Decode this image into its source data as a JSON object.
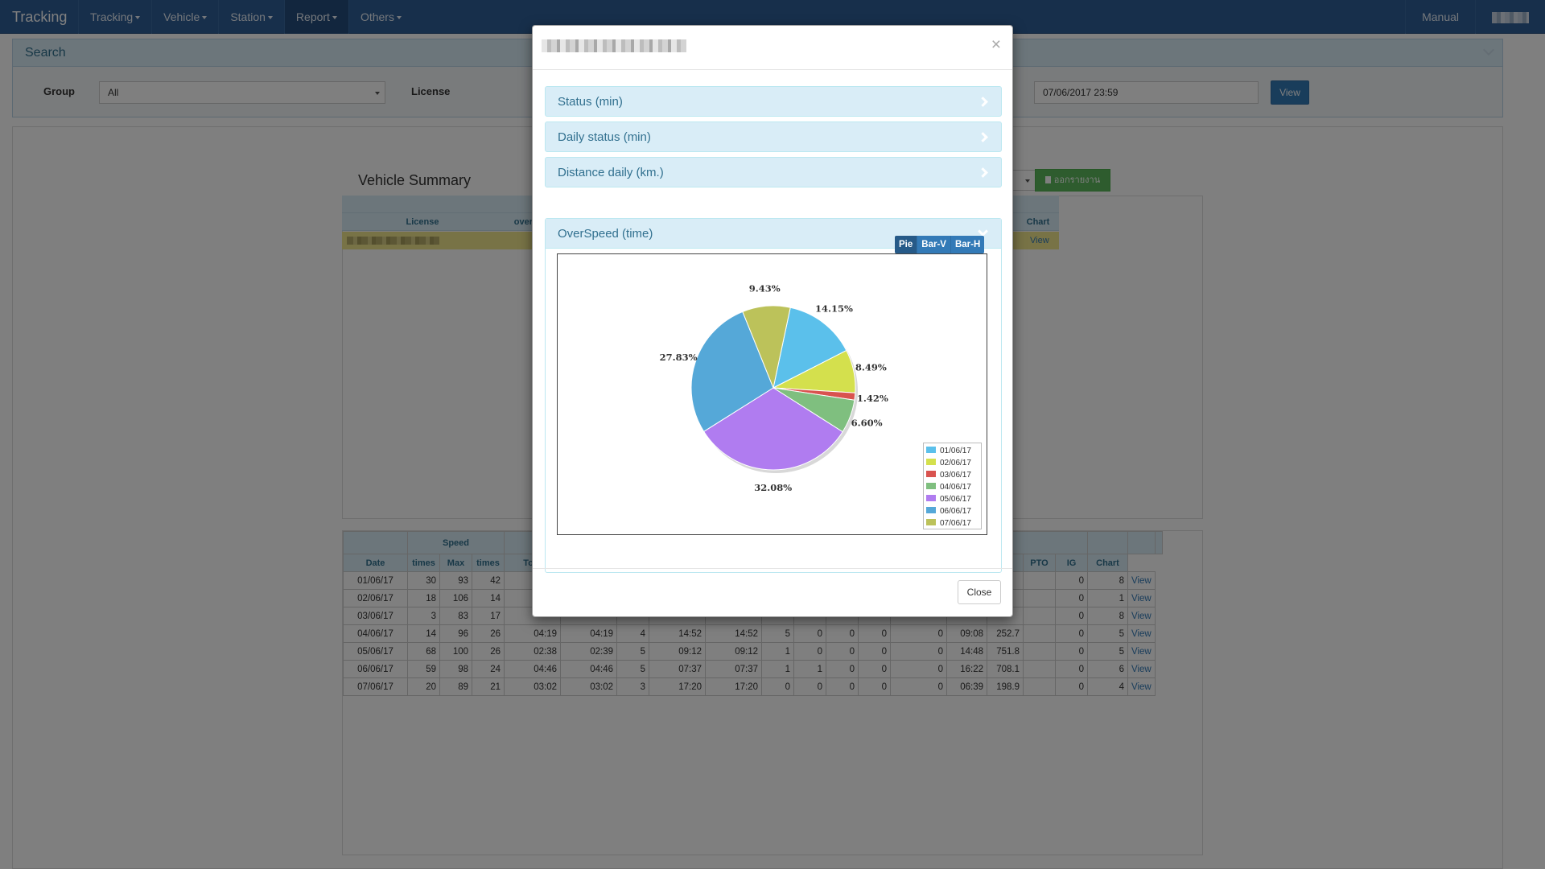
{
  "navbar": {
    "brand": "Tracking",
    "items": [
      {
        "label": "Tracking"
      },
      {
        "label": "Vehicle"
      },
      {
        "label": "Station"
      },
      {
        "label": "Report"
      },
      {
        "label": "Others"
      }
    ],
    "manual": "Manual"
  },
  "search": {
    "title": "Search",
    "group_label": "Group",
    "group_value": "All",
    "license_label": "License",
    "end_date": "07/06/2017 23:59",
    "view_label": "View"
  },
  "summary": {
    "title": "Vehicle Summary",
    "col_license": "License",
    "col_over": "over s",
    "col_chart": "Chart",
    "row_view": "View",
    "export_label": "ออกรายงาน"
  },
  "detail": {
    "group_speed": "Speed",
    "headers": [
      "Date",
      "times",
      "Max",
      "times",
      "Tota"
    ],
    "headers_right": [
      "PTO",
      "IG",
      "Chart"
    ],
    "rows": [
      {
        "date": "01/06/17",
        "c1": "30",
        "c2": "93",
        "c3": "42",
        "pto": "0",
        "ig": "8",
        "view": "View"
      },
      {
        "date": "02/06/17",
        "c1": "18",
        "c2": "106",
        "c3": "14",
        "pto": "0",
        "ig": "1",
        "view": "View"
      },
      {
        "date": "03/06/17",
        "c1": "3",
        "c2": "83",
        "c3": "17",
        "pto": "0",
        "ig": "8",
        "view": "View"
      },
      {
        "date": "04/06/17",
        "c1": "14",
        "c2": "96",
        "c3": "26",
        "t1": "04:19",
        "t2": "04:19",
        "n1": "4",
        "t3": "14:52",
        "t4": "14:52",
        "n2": "5",
        "n3": "0",
        "n4": "0",
        "n5": "0",
        "n6": "0",
        "t5": "09:08",
        "d": "252.7",
        "pto": "0",
        "ig": "5",
        "view": "View"
      },
      {
        "date": "05/06/17",
        "c1": "68",
        "c2": "100",
        "c3": "26",
        "t1": "02:38",
        "t2": "02:39",
        "n1": "5",
        "t3": "09:12",
        "t4": "09:12",
        "n2": "1",
        "n3": "0",
        "n4": "0",
        "n5": "0",
        "n6": "0",
        "t5": "14:48",
        "d": "751.8",
        "pto": "0",
        "ig": "5",
        "view": "View"
      },
      {
        "date": "06/06/17",
        "c1": "59",
        "c2": "98",
        "c3": "24",
        "t1": "04:46",
        "t2": "04:46",
        "n1": "5",
        "t3": "07:37",
        "t4": "07:37",
        "n2": "1",
        "n3": "1",
        "n4": "0",
        "n5": "0",
        "n6": "0",
        "t5": "16:22",
        "d": "708.1",
        "pto": "0",
        "ig": "6",
        "view": "View"
      },
      {
        "date": "07/06/17",
        "c1": "20",
        "c2": "89",
        "c3": "21",
        "t1": "03:02",
        "t2": "03:02",
        "n1": "3",
        "t3": "17:20",
        "t4": "17:20",
        "n2": "0",
        "n3": "0",
        "n4": "0",
        "n5": "0",
        "n6": "0",
        "t5": "06:39",
        "d": "198.9",
        "pto": "0",
        "ig": "4",
        "view": "View"
      }
    ]
  },
  "modal": {
    "close_x": "×",
    "sections": [
      {
        "label": "Status (min)"
      },
      {
        "label": "Daily status (min)"
      },
      {
        "label": "Distance daily (km.)"
      },
      {
        "label": "OverSpeed (time)"
      }
    ],
    "chart_modes": [
      {
        "label": "Pie",
        "active": true
      },
      {
        "label": "Bar-V",
        "active": false
      },
      {
        "label": "Bar-H",
        "active": false
      }
    ],
    "close_label": "Close"
  },
  "chart_data": {
    "type": "pie",
    "title": "",
    "legend_position": "bottom-right",
    "slices": [
      {
        "label": "01/06/17",
        "value": 14.15,
        "display": "14.15%",
        "color": "#5bc0eb"
      },
      {
        "label": "02/06/17",
        "value": 8.49,
        "display": "8.49%",
        "color": "#d4e04d"
      },
      {
        "label": "03/06/17",
        "value": 1.42,
        "display": "1.42%",
        "color": "#d9534f"
      },
      {
        "label": "04/06/17",
        "value": 6.6,
        "display": "6.60%",
        "color": "#7fbf7f"
      },
      {
        "label": "05/06/17",
        "value": 32.08,
        "display": "32.08%",
        "color": "#b07cf0"
      },
      {
        "label": "06/06/17",
        "value": 27.83,
        "display": "27.83%",
        "color": "#55a8d8"
      },
      {
        "label": "07/06/17",
        "value": 9.43,
        "display": "9.43%",
        "color": "#bcc25a"
      }
    ]
  }
}
